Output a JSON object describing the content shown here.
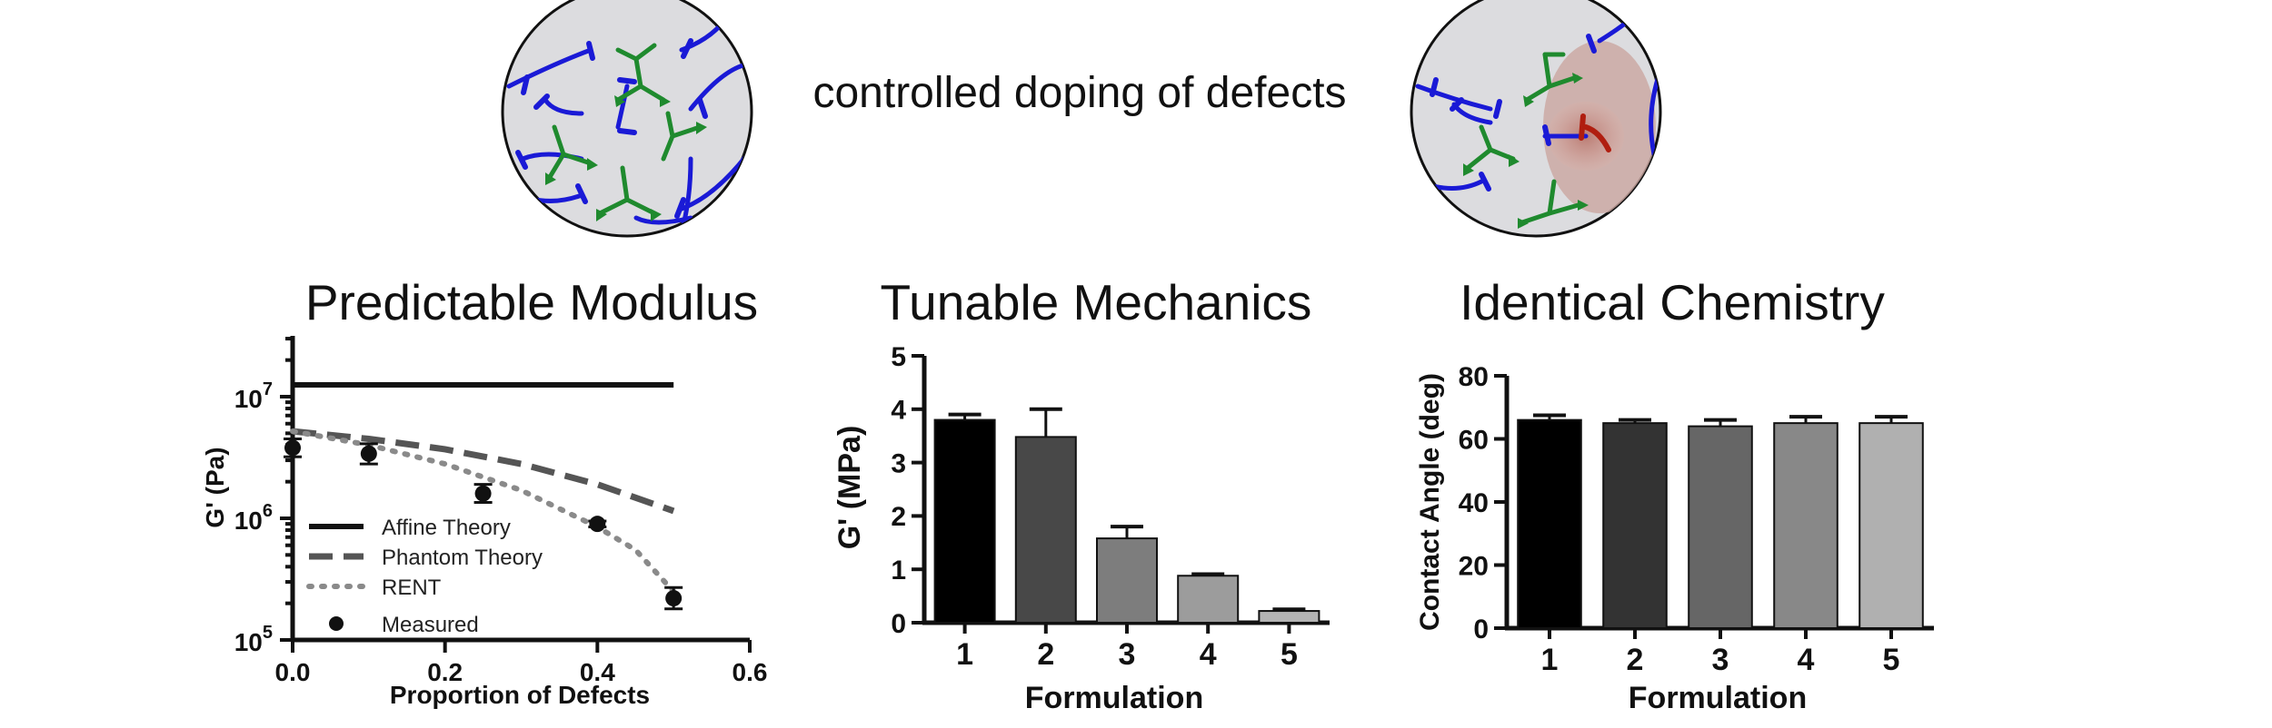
{
  "header": {
    "caption": "controlled doping of defects"
  },
  "colors": {
    "crosslinker": "#1f8a2e",
    "polymer": "#1a1ad6",
    "defect": "#b01e10",
    "halo": "#c98f86",
    "circle_fill": "#dcdcdf"
  },
  "chart_data": [
    {
      "type": "scatter",
      "title": "Predictable Modulus",
      "xlabel": "Proportion of Defects",
      "ylabel": "G' (Pa)",
      "xlim": [
        0,
        0.6
      ],
      "ylim_log10": [
        5,
        7.5
      ],
      "y_scale": "log",
      "xticks": [
        "0.0",
        "0.2",
        "0.4",
        "0.6"
      ],
      "xtick_values": [
        0,
        0.2,
        0.4,
        0.6
      ],
      "yticks": [
        {
          "base": "10",
          "exp": "5",
          "log": 5
        },
        {
          "base": "10",
          "exp": "6",
          "log": 6
        },
        {
          "base": "10",
          "exp": "7",
          "log": 7
        }
      ],
      "legend_position": "bottom-left",
      "series": [
        {
          "name": "Affine Theory",
          "style": "solid",
          "x": [
            0,
            0.5
          ],
          "y": [
            12500000,
            12500000
          ]
        },
        {
          "name": "Phantom Theory",
          "style": "dashed",
          "x": [
            0,
            0.1,
            0.2,
            0.3,
            0.4,
            0.5
          ],
          "y": [
            5200000,
            4500000,
            3700000,
            2800000,
            1900000,
            1150000
          ]
        },
        {
          "name": "RENT",
          "style": "dotted",
          "x": [
            0,
            0.1,
            0.2,
            0.3,
            0.4,
            0.45,
            0.5
          ],
          "y": [
            5200000,
            4000000,
            2800000,
            1700000,
            850000,
            550000,
            250000
          ]
        },
        {
          "name": "Measured",
          "style": "points",
          "x": [
            0,
            0.1,
            0.25,
            0.4,
            0.5
          ],
          "y": [
            3800000,
            3400000,
            1600000,
            900000,
            220000
          ],
          "err_low": [
            3200000,
            2800000,
            1350000,
            850000,
            180000
          ],
          "err_high": [
            4500000,
            4100000,
            1900000,
            950000,
            270000
          ]
        }
      ]
    },
    {
      "type": "bar",
      "title": "Tunable Mechanics",
      "xlabel": "Formulation",
      "ylabel": "G' (MPa)",
      "ylim": [
        0,
        5
      ],
      "yticks": [
        "0",
        "1",
        "2",
        "3",
        "4",
        "5"
      ],
      "categories": [
        "1",
        "2",
        "3",
        "4",
        "5"
      ],
      "values": [
        3.8,
        3.48,
        1.58,
        0.88,
        0.22
      ],
      "errors": [
        0.1,
        0.52,
        0.22,
        0.03,
        0.03
      ],
      "bar_colors": [
        "#000000",
        "#484848",
        "#7d7d7d",
        "#9c9c9c",
        "#b4b4b4"
      ]
    },
    {
      "type": "bar",
      "title": "Identical Chemistry",
      "xlabel": "Formulation",
      "ylabel": "Contact Angle (deg)",
      "ylim": [
        0,
        80
      ],
      "yticks": [
        "0",
        "20",
        "40",
        "60",
        "80"
      ],
      "categories": [
        "1",
        "2",
        "3",
        "4",
        "5"
      ],
      "values": [
        66,
        65,
        64,
        65,
        65
      ],
      "errors": [
        1.5,
        1,
        2,
        2,
        2
      ],
      "bar_colors": [
        "#000000",
        "#333333",
        "#666666",
        "#888888",
        "#b0b0b0"
      ]
    }
  ]
}
